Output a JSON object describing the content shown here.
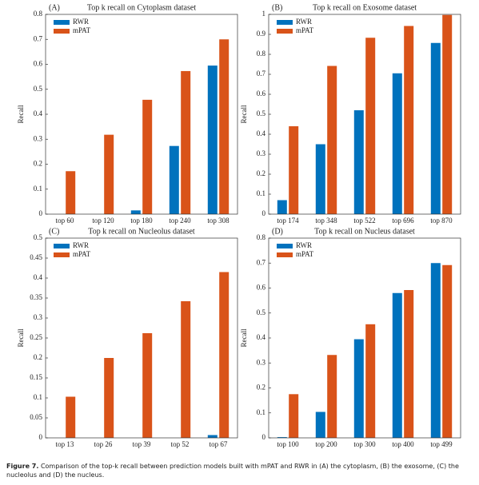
{
  "chart_data": [
    {
      "type": "bar",
      "panel": "(A)",
      "title": "Top k recall on Cytoplasm dataset",
      "y_label": "Recall",
      "categories": [
        "top 60",
        "top 120",
        "top 180",
        "top 240",
        "top 308"
      ],
      "series": [
        {
          "name": "RWR",
          "color": "#0072bd",
          "values": [
            0,
            0,
            0.015,
            0.273,
            0.595
          ]
        },
        {
          "name": "mPAT",
          "color": "#d95319",
          "values": [
            0.172,
            0.318,
            0.458,
            0.573,
            0.7
          ]
        }
      ],
      "ylim": [
        0,
        0.8
      ],
      "yticks": [
        0,
        0.1,
        0.2,
        0.3,
        0.4,
        0.5,
        0.6,
        0.7,
        0.8
      ],
      "legend": "upper left"
    },
    {
      "type": "bar",
      "panel": "(B)",
      "title": "Top k recall on Exosome dataset",
      "y_label": "Recall",
      "categories": [
        "top 174",
        "top 348",
        "top 522",
        "top 696",
        "top 870"
      ],
      "series": [
        {
          "name": "RWR",
          "color": "#0072bd",
          "values": [
            0.07,
            0.35,
            0.52,
            0.705,
            0.857
          ]
        },
        {
          "name": "mPAT",
          "color": "#d95319",
          "values": [
            0.44,
            0.742,
            0.883,
            0.942,
            0.997
          ]
        }
      ],
      "ylim": [
        0,
        1
      ],
      "yticks": [
        0,
        0.1,
        0.2,
        0.3,
        0.4,
        0.5,
        0.6,
        0.7,
        0.8,
        0.9,
        1
      ],
      "legend": "upper left"
    },
    {
      "type": "bar",
      "panel": "(C)",
      "title": "Top k recall on Nucleolus dataset",
      "y_label": "Recall",
      "categories": [
        "top 13",
        "top 26",
        "top 39",
        "top 52",
        "top 67"
      ],
      "series": [
        {
          "name": "RWR",
          "color": "#0072bd",
          "values": [
            0,
            0,
            0,
            0,
            0.007
          ]
        },
        {
          "name": "mPAT",
          "color": "#d95319",
          "values": [
            0.103,
            0.2,
            0.262,
            0.342,
            0.415
          ]
        }
      ],
      "ylim": [
        0,
        0.5
      ],
      "yticks": [
        0,
        0.05,
        0.1,
        0.15,
        0.2,
        0.25,
        0.3,
        0.35,
        0.4,
        0.45,
        0.5
      ],
      "legend": "upper left"
    },
    {
      "type": "bar",
      "panel": "(D)",
      "title": "Top k recall on Nucleus dataset",
      "y_label": "Recall",
      "categories": [
        "top 100",
        "top 200",
        "top 300",
        "top 400",
        "top 499"
      ],
      "series": [
        {
          "name": "RWR",
          "color": "#0072bd",
          "values": [
            0.003,
            0.104,
            0.395,
            0.58,
            0.7
          ]
        },
        {
          "name": "mPAT",
          "color": "#d95319",
          "values": [
            0.175,
            0.332,
            0.455,
            0.592,
            0.692
          ]
        }
      ],
      "ylim": [
        0,
        0.8
      ],
      "yticks": [
        0,
        0.1,
        0.2,
        0.3,
        0.4,
        0.5,
        0.6,
        0.7,
        0.8
      ],
      "legend": "upper left"
    }
  ],
  "caption_label": "Figure 7.",
  "caption": "Comparison of the top-k recall between prediction models built with mPAT and RWR in (A) the cytoplasm, (B) the exosome, (C) the nucleolus and (D) the nucleus."
}
